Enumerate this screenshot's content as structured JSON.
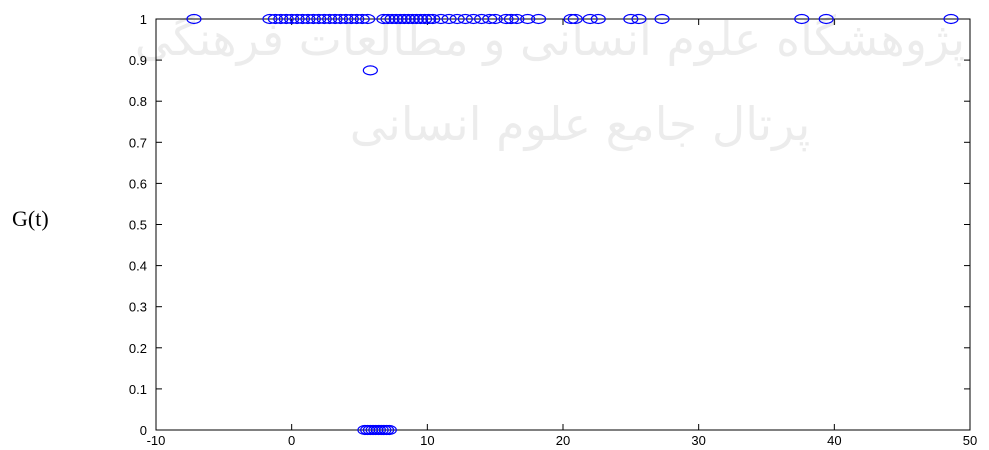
{
  "chart_data": {
    "type": "scatter",
    "title": "",
    "xlabel": "",
    "ylabel": "G(t)",
    "xlim": [
      -10,
      50
    ],
    "ylim": [
      0,
      1
    ],
    "xticks": [
      "-10",
      "0",
      "10",
      "20",
      "30",
      "40",
      "50"
    ],
    "yticks": [
      "0",
      "0.1",
      "0.2",
      "0.3",
      "0.4",
      "0.5",
      "0.6",
      "0.7",
      "0.8",
      "0.9",
      "1"
    ],
    "grid": false,
    "marker": "o",
    "marker_color": "#0000ff",
    "series": [
      {
        "points": [
          [
            -7.2,
            1
          ],
          [
            -1.6,
            1
          ],
          [
            -1.2,
            1
          ],
          [
            -0.8,
            1
          ],
          [
            -0.4,
            1
          ],
          [
            0.0,
            1
          ],
          [
            0.4,
            1
          ],
          [
            0.8,
            1
          ],
          [
            1.2,
            1
          ],
          [
            1.6,
            1
          ],
          [
            2.0,
            1
          ],
          [
            2.4,
            1
          ],
          [
            2.8,
            1
          ],
          [
            3.2,
            1
          ],
          [
            3.6,
            1
          ],
          [
            4.0,
            1
          ],
          [
            4.4,
            1
          ],
          [
            4.8,
            1
          ],
          [
            5.2,
            1
          ],
          [
            5.6,
            1
          ],
          [
            6.8,
            1
          ],
          [
            7.1,
            1
          ],
          [
            7.4,
            1
          ],
          [
            7.7,
            1
          ],
          [
            8.0,
            1
          ],
          [
            8.3,
            1
          ],
          [
            8.6,
            1
          ],
          [
            8.9,
            1
          ],
          [
            9.2,
            1
          ],
          [
            9.5,
            1
          ],
          [
            9.8,
            1
          ],
          [
            10.1,
            1
          ],
          [
            10.4,
            1
          ],
          [
            11.0,
            1
          ],
          [
            11.6,
            1
          ],
          [
            12.2,
            1
          ],
          [
            12.8,
            1
          ],
          [
            13.4,
            1
          ],
          [
            14.0,
            1
          ],
          [
            14.6,
            1
          ],
          [
            15.0,
            1
          ],
          [
            15.8,
            1
          ],
          [
            16.2,
            1
          ],
          [
            16.6,
            1
          ],
          [
            17.4,
            1
          ],
          [
            18.2,
            1
          ],
          [
            20.6,
            1
          ],
          [
            20.9,
            1
          ],
          [
            22.0,
            1
          ],
          [
            22.6,
            1
          ],
          [
            25.0,
            1
          ],
          [
            25.6,
            1
          ],
          [
            27.3,
            1
          ],
          [
            37.6,
            1
          ],
          [
            39.4,
            1
          ],
          [
            48.6,
            1
          ],
          [
            5.8,
            0.875
          ],
          [
            5.4,
            0
          ],
          [
            5.6,
            0
          ],
          [
            5.8,
            0
          ],
          [
            6.0,
            0
          ],
          [
            6.2,
            0
          ],
          [
            6.4,
            0
          ],
          [
            6.6,
            0
          ],
          [
            6.8,
            0
          ],
          [
            7.0,
            0
          ],
          [
            7.2,
            0
          ]
        ]
      }
    ]
  },
  "watermark": {
    "line1": "پژوهشگاه علوم انسانی و مطالعات فرهنگی",
    "line2": "پرتال جامع علوم انسانی"
  }
}
